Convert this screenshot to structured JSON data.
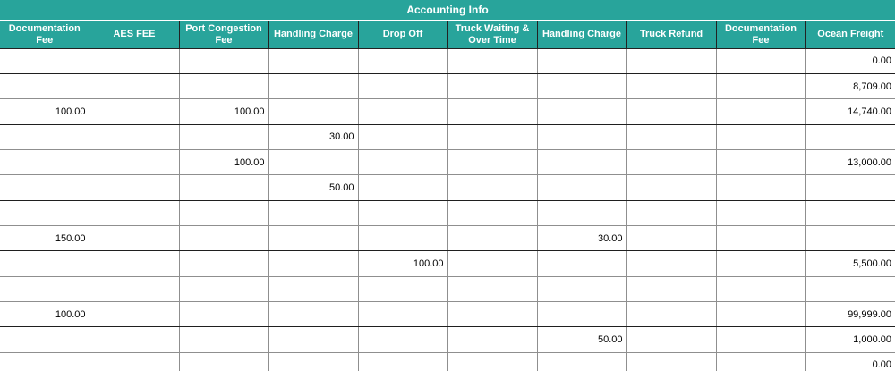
{
  "title": "Accounting Info",
  "columns": [
    "Documentation Fee",
    "AES FEE",
    "Port Congestion Fee",
    "Handling Charge",
    "Drop Off",
    "Truck Waiting & Over Time",
    "Handling Charge",
    "Truck Refund",
    "Documentation Fee",
    "Ocean Freight"
  ],
  "rows": [
    {
      "cells": [
        "",
        "",
        "",
        "",
        "",
        "",
        "",
        "",
        "",
        "0.00"
      ],
      "group_end": true
    },
    {
      "cells": [
        "",
        "",
        "",
        "",
        "",
        "",
        "",
        "",
        "",
        "8,709.00"
      ],
      "group_end": false
    },
    {
      "cells": [
        "100.00",
        "",
        "100.00",
        "",
        "",
        "",
        "",
        "",
        "",
        "14,740.00"
      ],
      "group_end": true
    },
    {
      "cells": [
        "",
        "",
        "",
        "30.00",
        "",
        "",
        "",
        "",
        "",
        ""
      ],
      "group_end": false
    },
    {
      "cells": [
        "",
        "",
        "100.00",
        "",
        "",
        "",
        "",
        "",
        "",
        "13,000.00"
      ],
      "group_end": false
    },
    {
      "cells": [
        "",
        "",
        "",
        "50.00",
        "",
        "",
        "",
        "",
        "",
        ""
      ],
      "group_end": true
    },
    {
      "cells": [
        "",
        "",
        "",
        "",
        "",
        "",
        "",
        "",
        "",
        ""
      ],
      "group_end": false
    },
    {
      "cells": [
        "150.00",
        "",
        "",
        "",
        "",
        "",
        "30.00",
        "",
        "",
        ""
      ],
      "group_end": true
    },
    {
      "cells": [
        "",
        "",
        "",
        "",
        "100.00",
        "",
        "",
        "",
        "",
        "5,500.00"
      ],
      "group_end": false
    },
    {
      "cells": [
        "",
        "",
        "",
        "",
        "",
        "",
        "",
        "",
        "",
        ""
      ],
      "group_end": false
    },
    {
      "cells": [
        "100.00",
        "",
        "",
        "",
        "",
        "",
        "",
        "",
        "",
        "99,999.00"
      ],
      "group_end": true
    },
    {
      "cells": [
        "",
        "",
        "",
        "",
        "",
        "",
        "50.00",
        "",
        "",
        "1,000.00"
      ],
      "group_end": false
    },
    {
      "cells": [
        "",
        "",
        "",
        "",
        "",
        "",
        "",
        "",
        "",
        "0.00"
      ],
      "group_end": false
    }
  ],
  "colors": {
    "header_bg": "#28A49B",
    "header_text": "#FFFFFF",
    "cell_text": "#000000",
    "border_light": "#8F8F8F",
    "border_dark": "#1F1F1F"
  }
}
